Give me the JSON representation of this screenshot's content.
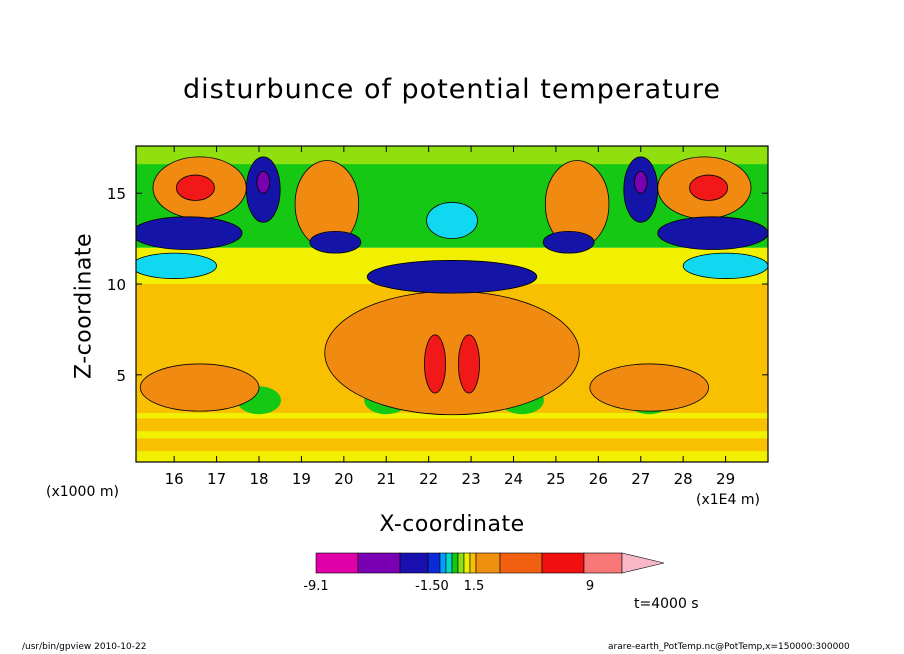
{
  "chart_data": {
    "type": "heatmap",
    "subtype": "filled-contour",
    "title": "disturbunce of potential temperature",
    "xlabel": "X-coordinate",
    "ylabel": "Z-coordinate",
    "x_unit": "(x1E4 m)",
    "y_unit": "(x1000 m)",
    "xlim": [
      15.1,
      30.0
    ],
    "ylim": [
      0.2,
      17.6
    ],
    "x_ticks": [
      "16",
      "17",
      "18",
      "19",
      "20",
      "21",
      "22",
      "23",
      "24",
      "25",
      "26",
      "27",
      "28",
      "29"
    ],
    "y_ticks": [
      "5",
      "10",
      "15"
    ],
    "symmetric_about_x": 22.55,
    "grid": false,
    "colorbar": {
      "orientation": "horizontal",
      "placement": "bottom",
      "colors": [
        "#e000a8",
        "#7a00b4",
        "#1a10b0",
        "#0d2ad8",
        "#00a0ff",
        "#00d8c8",
        "#10c810",
        "#88e010",
        "#e8f000",
        "#f8c000",
        "#f09010",
        "#f06010",
        "#f01010",
        "#f87878",
        "#f8b8c8"
      ],
      "tick_labels": [
        "-9.1",
        "-1.50",
        "1.5",
        "9"
      ]
    },
    "annotation": "t=4000 s",
    "regions": [
      {
        "level": "orange",
        "x": 22.55,
        "y": 6.2,
        "rx": 3.0,
        "ry": 3.4
      },
      {
        "level": "red",
        "x": 22.15,
        "y": 5.6,
        "rx": 0.25,
        "ry": 1.6
      },
      {
        "level": "red",
        "x": 22.95,
        "y": 5.6,
        "rx": 0.25,
        "ry": 1.6
      },
      {
        "level": "orange",
        "x": 16.6,
        "y": 4.3,
        "rx": 1.4,
        "ry": 1.3
      },
      {
        "level": "orange",
        "x": 27.2,
        "y": 4.3,
        "rx": 1.4,
        "ry": 1.3
      },
      {
        "level": "orange",
        "x": 16.6,
        "y": 15.3,
        "rx": 1.1,
        "ry": 1.7
      },
      {
        "level": "red",
        "x": 16.5,
        "y": 15.3,
        "rx": 0.45,
        "ry": 0.7
      },
      {
        "level": "orange",
        "x": 28.5,
        "y": 15.3,
        "rx": 1.1,
        "ry": 1.7
      },
      {
        "level": "red",
        "x": 28.6,
        "y": 15.3,
        "rx": 0.45,
        "ry": 0.7
      },
      {
        "level": "orange",
        "x": 19.6,
        "y": 14.4,
        "rx": 0.75,
        "ry": 2.4
      },
      {
        "level": "orange",
        "x": 25.5,
        "y": 14.4,
        "rx": 0.75,
        "ry": 2.4
      },
      {
        "level": "blue",
        "x": 18.1,
        "y": 15.2,
        "rx": 0.4,
        "ry": 1.8
      },
      {
        "level": "purple",
        "x": 18.1,
        "y": 15.6,
        "rx": 0.15,
        "ry": 0.6
      },
      {
        "level": "blue",
        "x": 27.0,
        "y": 15.2,
        "rx": 0.4,
        "ry": 1.8
      },
      {
        "level": "purple",
        "x": 27.0,
        "y": 15.6,
        "rx": 0.15,
        "ry": 0.6
      },
      {
        "level": "blue",
        "x": 16.3,
        "y": 12.8,
        "rx": 1.3,
        "ry": 0.9
      },
      {
        "level": "blue",
        "x": 28.7,
        "y": 12.8,
        "rx": 1.3,
        "ry": 0.9
      },
      {
        "level": "blue",
        "x": 22.55,
        "y": 10.4,
        "rx": 2.0,
        "ry": 0.9
      },
      {
        "level": "blue",
        "x": 19.8,
        "y": 12.3,
        "rx": 0.6,
        "ry": 0.6
      },
      {
        "level": "blue",
        "x": 25.3,
        "y": 12.3,
        "rx": 0.6,
        "ry": 0.6
      },
      {
        "level": "cyan",
        "x": 16.0,
        "y": 11.0,
        "rx": 1.0,
        "ry": 0.7
      },
      {
        "level": "cyan",
        "x": 29.0,
        "y": 11.0,
        "rx": 1.0,
        "ry": 0.7
      },
      {
        "level": "cyan",
        "x": 22.55,
        "y": 13.5,
        "rx": 0.6,
        "ry": 1.0
      }
    ]
  },
  "footer": {
    "left": "/usr/bin/gpview  2010-10-22",
    "right": "arare-earth_PotTemp.nc@PotTemp,x=150000:300000"
  }
}
